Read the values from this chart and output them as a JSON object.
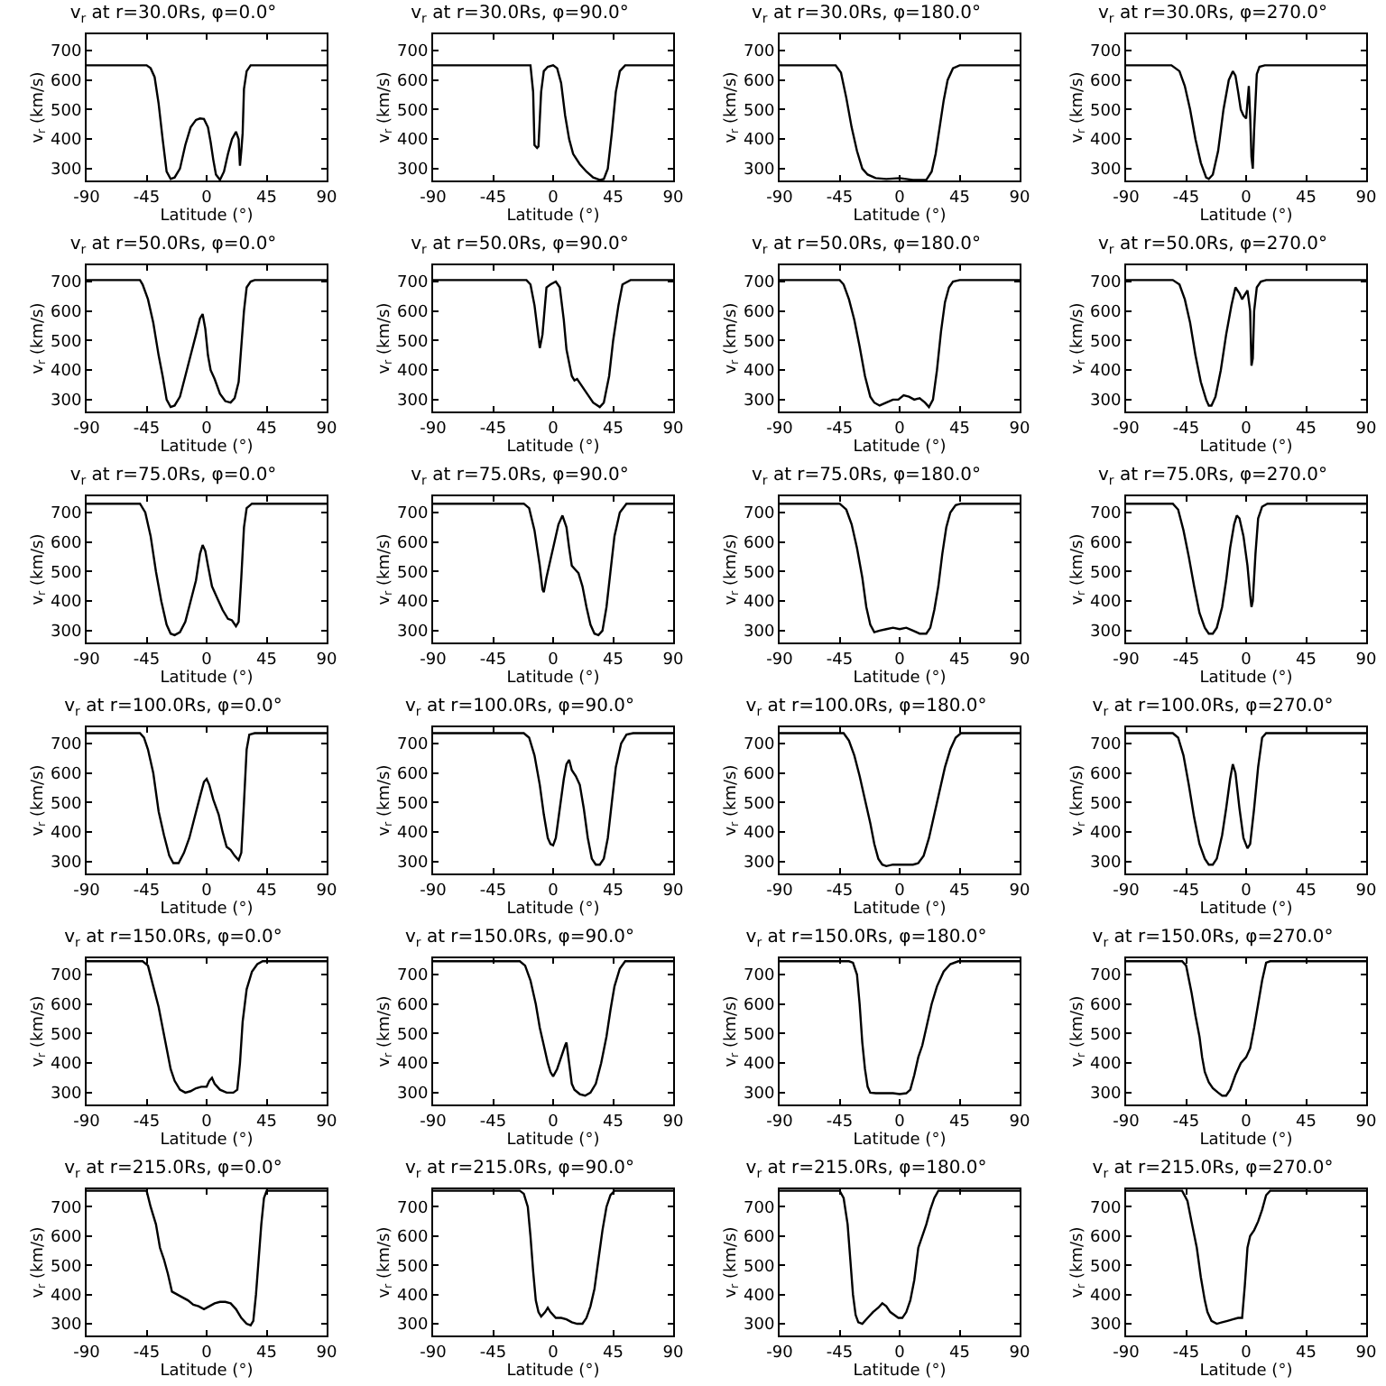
{
  "chart_data": [
    {
      "type": "line",
      "title": "v$_{r}$ at r=30.0Rs, φ=0.0°",
      "xlabel": "Latitude (°)",
      "ylabel": "v$_{r}$ (km/s)",
      "xlim": [
        -90,
        90
      ],
      "xticks": [
        -90,
        -45,
        0,
        45,
        90
      ],
      "ylim": [
        260,
        755
      ],
      "yticks": [
        300,
        400,
        500,
        600,
        700
      ],
      "color": "#000000",
      "x": [
        -90,
        -45,
        -42,
        -39,
        -36,
        -33,
        -30,
        -27,
        -24,
        -20,
        -16,
        -12,
        -8,
        -5,
        -2,
        1,
        3,
        5,
        7,
        10,
        13,
        16,
        19,
        22,
        24,
        25,
        26,
        27,
        28,
        30,
        33,
        36,
        90
      ],
      "values": [
        650,
        650,
        640,
        610,
        520,
        400,
        290,
        265,
        270,
        300,
        380,
        440,
        465,
        470,
        468,
        440,
        390,
        330,
        280,
        262,
        290,
        350,
        400,
        425,
        400,
        310,
        360,
        420,
        570,
        630,
        650,
        650,
        650
      ]
    },
    {
      "type": "line",
      "title": "v$_{r}$ at r=30.0Rs, φ=90.0°",
      "xlabel": "Latitude (°)",
      "ylabel": "v$_{r}$ (km/s)",
      "xlim": [
        -90,
        90
      ],
      "xticks": [
        -90,
        -45,
        0,
        45,
        90
      ],
      "ylim": [
        260,
        755
      ],
      "yticks": [
        300,
        400,
        500,
        600,
        700
      ],
      "color": "#000000",
      "x": [
        -90,
        -17,
        -15,
        -14,
        -12,
        -11,
        -9,
        -7,
        -4,
        0,
        3,
        6,
        9,
        12,
        15,
        20,
        25,
        30,
        35,
        38,
        41,
        44,
        47,
        50,
        54,
        90
      ],
      "values": [
        650,
        650,
        560,
        380,
        370,
        375,
        560,
        630,
        645,
        650,
        640,
        590,
        480,
        400,
        350,
        315,
        290,
        270,
        262,
        265,
        300,
        420,
        560,
        630,
        650,
        650
      ]
    },
    {
      "type": "line",
      "title": "v$_{r}$ at r=30.0Rs, φ=180.0°",
      "xlabel": "Latitude (°)",
      "ylabel": "v$_{r}$ (km/s)",
      "xlim": [
        -90,
        90
      ],
      "xticks": [
        -90,
        -45,
        0,
        45,
        90
      ],
      "ylim": [
        260,
        755
      ],
      "yticks": [
        300,
        400,
        500,
        600,
        700
      ],
      "color": "#000000",
      "x": [
        -90,
        -48,
        -44,
        -40,
        -36,
        -32,
        -28,
        -24,
        -18,
        -10,
        0,
        10,
        20,
        24,
        27,
        30,
        33,
        36,
        40,
        45,
        90
      ],
      "values": [
        650,
        650,
        625,
        540,
        440,
        360,
        300,
        280,
        268,
        265,
        268,
        262,
        262,
        290,
        350,
        440,
        530,
        600,
        640,
        650,
        650
      ]
    },
    {
      "type": "line",
      "title": "v$_{r}$ at r=30.0Rs, φ=270.0°",
      "xlabel": "Latitude (°)",
      "ylabel": "v$_{r}$ (km/s)",
      "xlim": [
        -90,
        90
      ],
      "xticks": [
        -90,
        -45,
        0,
        45,
        90
      ],
      "ylim": [
        260,
        755
      ],
      "yticks": [
        300,
        400,
        500,
        600,
        700
      ],
      "color": "#000000",
      "x": [
        -90,
        -56,
        -50,
        -46,
        -42,
        -38,
        -34,
        -30,
        -28,
        -25,
        -21,
        -17,
        -13,
        -10,
        -8,
        -6,
        -4,
        -2,
        0,
        2,
        3,
        4,
        5,
        6,
        8,
        10,
        14,
        90
      ],
      "values": [
        650,
        650,
        630,
        580,
        500,
        400,
        320,
        270,
        265,
        280,
        360,
        500,
        600,
        630,
        615,
        560,
        500,
        480,
        470,
        580,
        480,
        340,
        300,
        430,
        620,
        645,
        650,
        650
      ]
    },
    {
      "type": "line",
      "title": "v$_{r}$ at r=50.0Rs, φ=0.0°",
      "xlabel": "Latitude (°)",
      "ylabel": "v$_{r}$ (km/s)",
      "xlim": [
        -90,
        90
      ],
      "xticks": [
        -90,
        -45,
        0,
        45,
        90
      ],
      "ylim": [
        260,
        755
      ],
      "yticks": [
        300,
        400,
        500,
        600,
        700
      ],
      "color": "#000000",
      "x": [
        -90,
        -50,
        -48,
        -44,
        -40,
        -36,
        -33,
        -30,
        -27,
        -24,
        -20,
        -16,
        -12,
        -8,
        -5,
        -3,
        -1,
        1,
        3,
        6,
        10,
        14,
        18,
        21,
        24,
        26,
        28,
        30,
        33,
        36,
        90
      ],
      "values": [
        705,
        705,
        690,
        640,
        560,
        450,
        380,
        300,
        275,
        280,
        310,
        380,
        450,
        520,
        575,
        590,
        540,
        450,
        400,
        370,
        320,
        295,
        290,
        305,
        360,
        480,
        600,
        680,
        700,
        705,
        705
      ]
    },
    {
      "type": "line",
      "title": "v$_{r}$ at r=50.0Rs, φ=90.0°",
      "xlabel": "Latitude (°)",
      "ylabel": "v$_{r}$ (km/s)",
      "xlim": [
        -90,
        90
      ],
      "xticks": [
        -90,
        -45,
        0,
        45,
        90
      ],
      "ylim": [
        260,
        755
      ],
      "yticks": [
        300,
        400,
        500,
        600,
        700
      ],
      "color": "#000000",
      "x": [
        -90,
        -20,
        -17,
        -14,
        -10,
        -8,
        -5,
        -2,
        2,
        5,
        8,
        10,
        14,
        16,
        18,
        24,
        30,
        35,
        38,
        42,
        45,
        49,
        52,
        58,
        90
      ],
      "values": [
        705,
        705,
        690,
        620,
        475,
        520,
        680,
        690,
        700,
        680,
        570,
        470,
        380,
        365,
        370,
        330,
        290,
        275,
        290,
        380,
        500,
        620,
        690,
        705,
        705
      ]
    },
    {
      "type": "line",
      "title": "v$_{r}$ at r=50.0Rs, φ=180.0°",
      "xlabel": "Latitude (°)",
      "ylabel": "v$_{r}$ (km/s)",
      "xlim": [
        -90,
        90
      ],
      "xticks": [
        -90,
        -45,
        0,
        45,
        90
      ],
      "ylim": [
        260,
        755
      ],
      "yticks": [
        300,
        400,
        500,
        600,
        700
      ],
      "color": "#000000",
      "x": [
        -90,
        -45,
        -42,
        -38,
        -34,
        -30,
        -26,
        -22,
        -19,
        -15,
        -10,
        -5,
        -1,
        3,
        7,
        11,
        15,
        19,
        22,
        25,
        28,
        31,
        34,
        37,
        40,
        45,
        90
      ],
      "values": [
        705,
        705,
        690,
        640,
        570,
        480,
        380,
        310,
        290,
        280,
        290,
        300,
        300,
        315,
        310,
        300,
        305,
        290,
        275,
        300,
        400,
        530,
        630,
        680,
        700,
        705,
        705
      ]
    },
    {
      "type": "line",
      "title": "v$_{r}$ at r=50.0Rs, φ=270.0°",
      "xlabel": "Latitude (°)",
      "ylabel": "v$_{r}$ (km/s)",
      "xlim": [
        -90,
        90
      ],
      "xticks": [
        -90,
        -45,
        0,
        45,
        90
      ],
      "ylim": [
        260,
        755
      ],
      "yticks": [
        300,
        400,
        500,
        600,
        700
      ],
      "color": "#000000",
      "x": [
        -90,
        -55,
        -50,
        -46,
        -42,
        -38,
        -34,
        -30,
        -28,
        -26,
        -23,
        -19,
        -15,
        -11,
        -8,
        -5,
        -3,
        -1,
        1,
        3,
        4,
        5,
        6,
        8,
        11,
        15,
        90
      ],
      "values": [
        705,
        705,
        690,
        640,
        560,
        450,
        360,
        300,
        280,
        280,
        310,
        400,
        520,
        620,
        680,
        660,
        640,
        655,
        670,
        600,
        415,
        440,
        600,
        680,
        700,
        705,
        705
      ]
    },
    {
      "type": "line",
      "title": "v$_{r}$ at r=75.0Rs, φ=0.0°",
      "xlabel": "Latitude (°)",
      "ylabel": "v$_{r}$ (km/s)",
      "xlim": [
        -90,
        90
      ],
      "xticks": [
        -90,
        -45,
        0,
        45,
        90
      ],
      "ylim": [
        260,
        755
      ],
      "yticks": [
        300,
        400,
        500,
        600,
        700
      ],
      "color": "#000000",
      "x": [
        -90,
        -50,
        -46,
        -42,
        -38,
        -34,
        -30,
        -27,
        -24,
        -20,
        -16,
        -12,
        -8,
        -5,
        -3,
        -1,
        1,
        4,
        8,
        12,
        16,
        19,
        22,
        24,
        26,
        28,
        30,
        34,
        90
      ],
      "values": [
        730,
        730,
        700,
        620,
        500,
        400,
        320,
        290,
        285,
        295,
        330,
        400,
        470,
        560,
        590,
        570,
        520,
        450,
        410,
        370,
        340,
        335,
        315,
        330,
        480,
        650,
        715,
        730,
        730
      ]
    },
    {
      "type": "line",
      "title": "v$_{r}$ at r=75.0Rs, φ=90.0°",
      "xlabel": "Latitude (°)",
      "ylabel": "v$_{r}$ (km/s)",
      "xlim": [
        -90,
        90
      ],
      "xticks": [
        -90,
        -45,
        0,
        45,
        90
      ],
      "ylim": [
        260,
        755
      ],
      "yticks": [
        300,
        400,
        500,
        600,
        700
      ],
      "color": "#000000",
      "x": [
        -90,
        -22,
        -18,
        -14,
        -10,
        -8,
        -7,
        -5,
        -2,
        1,
        4,
        7,
        10,
        12,
        14,
        16,
        19,
        22,
        25,
        28,
        31,
        34,
        37,
        40,
        43,
        46,
        50,
        55,
        90
      ],
      "values": [
        730,
        730,
        715,
        640,
        520,
        440,
        430,
        480,
        540,
        600,
        660,
        690,
        650,
        580,
        520,
        510,
        495,
        450,
        380,
        320,
        290,
        285,
        300,
        380,
        500,
        620,
        700,
        730,
        730
      ]
    },
    {
      "type": "line",
      "title": "v$_{r}$ at r=75.0Rs, φ=180.0°",
      "xlabel": "Latitude (°)",
      "ylabel": "v$_{r}$ (km/s)",
      "xlim": [
        -90,
        90
      ],
      "xticks": [
        -90,
        -45,
        0,
        45,
        90
      ],
      "ylim": [
        260,
        755
      ],
      "yticks": [
        300,
        400,
        500,
        600,
        700
      ],
      "color": "#000000",
      "x": [
        -90,
        -45,
        -40,
        -36,
        -32,
        -28,
        -25,
        -22,
        -19,
        -15,
        -10,
        -5,
        0,
        5,
        10,
        15,
        20,
        23,
        26,
        29,
        32,
        35,
        38,
        42,
        46,
        90
      ],
      "values": [
        730,
        730,
        710,
        660,
        580,
        480,
        380,
        320,
        295,
        300,
        305,
        310,
        305,
        310,
        300,
        290,
        290,
        310,
        370,
        450,
        560,
        650,
        700,
        725,
        730,
        730
      ]
    },
    {
      "type": "line",
      "title": "v$_{r}$ at r=75.0Rs, φ=270.0°",
      "xlabel": "Latitude (°)",
      "ylabel": "v$_{r}$ (km/s)",
      "xlim": [
        -90,
        90
      ],
      "xticks": [
        -90,
        -45,
        0,
        45,
        90
      ],
      "ylim": [
        260,
        755
      ],
      "yticks": [
        300,
        400,
        500,
        600,
        700
      ],
      "color": "#000000",
      "x": [
        -90,
        -55,
        -51,
        -47,
        -43,
        -39,
        -35,
        -31,
        -28,
        -25,
        -22,
        -18,
        -15,
        -12,
        -9,
        -7,
        -5,
        -2,
        1,
        3,
        4,
        5,
        7,
        9,
        12,
        16,
        90
      ],
      "values": [
        730,
        730,
        710,
        640,
        550,
        450,
        360,
        310,
        290,
        290,
        310,
        380,
        470,
        580,
        660,
        690,
        680,
        620,
        520,
        420,
        380,
        400,
        560,
        680,
        720,
        730,
        730
      ]
    },
    {
      "type": "line",
      "title": "v$_{r}$ at r=100.0Rs, φ=0.0°",
      "xlabel": "Latitude (°)",
      "ylabel": "v$_{r}$ (km/s)",
      "xlim": [
        -90,
        90
      ],
      "xticks": [
        -90,
        -45,
        0,
        45,
        90
      ],
      "ylim": [
        260,
        755
      ],
      "yticks": [
        300,
        400,
        500,
        600,
        700
      ],
      "color": "#000000",
      "x": [
        -90,
        -50,
        -47,
        -44,
        -40,
        -36,
        -32,
        -28,
        -25,
        -21,
        -17,
        -13,
        -9,
        -5,
        -2,
        0,
        2,
        5,
        9,
        12,
        15,
        18,
        21,
        24,
        26,
        28,
        30,
        32,
        36,
        90
      ],
      "values": [
        735,
        735,
        720,
        680,
        600,
        470,
        390,
        320,
        295,
        295,
        330,
        380,
        450,
        520,
        570,
        580,
        560,
        510,
        460,
        400,
        350,
        340,
        320,
        305,
        330,
        500,
        680,
        730,
        735,
        735
      ]
    },
    {
      "type": "line",
      "title": "v$_{r}$ at r=100.0Rs, φ=90.0°",
      "xlabel": "Latitude (°)",
      "ylabel": "v$_{r}$ (km/s)",
      "xlim": [
        -90,
        90
      ],
      "xticks": [
        -90,
        -45,
        0,
        45,
        90
      ],
      "ylim": [
        260,
        755
      ],
      "yticks": [
        300,
        400,
        500,
        600,
        700
      ],
      "color": "#000000",
      "x": [
        -90,
        -22,
        -18,
        -14,
        -10,
        -7,
        -4,
        -2,
        0,
        2,
        5,
        8,
        10,
        12,
        14,
        17,
        20,
        23,
        26,
        29,
        32,
        35,
        38,
        41,
        44,
        47,
        51,
        55,
        60,
        90
      ],
      "values": [
        735,
        735,
        720,
        660,
        560,
        460,
        380,
        360,
        355,
        380,
        480,
        580,
        630,
        645,
        610,
        590,
        560,
        480,
        380,
        310,
        290,
        290,
        310,
        380,
        500,
        620,
        700,
        730,
        735,
        735
      ]
    },
    {
      "type": "line",
      "title": "v$_{r}$ at r=100.0Rs, φ=180.0°",
      "xlabel": "Latitude (°)",
      "ylabel": "v$_{r}$ (km/s)",
      "xlim": [
        -90,
        90
      ],
      "xticks": [
        -90,
        -45,
        0,
        45,
        90
      ],
      "ylim": [
        260,
        755
      ],
      "yticks": [
        300,
        400,
        500,
        600,
        700
      ],
      "color": "#000000",
      "x": [
        -90,
        -42,
        -38,
        -34,
        -30,
        -26,
        -22,
        -19,
        -16,
        -13,
        -10,
        -5,
        0,
        5,
        10,
        14,
        18,
        22,
        26,
        30,
        34,
        38,
        42,
        46,
        90
      ],
      "values": [
        735,
        735,
        710,
        660,
        590,
        510,
        430,
        360,
        310,
        290,
        285,
        290,
        290,
        290,
        290,
        295,
        320,
        380,
        460,
        540,
        620,
        680,
        720,
        735,
        735
      ]
    },
    {
      "type": "line",
      "title": "v$_{r}$ at r=100.0Rs, φ=270.0°",
      "xlabel": "Latitude (°)",
      "ylabel": "v$_{r}$ (km/s)",
      "xlim": [
        -90,
        90
      ],
      "xticks": [
        -90,
        -45,
        0,
        45,
        90
      ],
      "ylim": [
        260,
        755
      ],
      "yticks": [
        300,
        400,
        500,
        600,
        700
      ],
      "color": "#000000",
      "x": [
        -90,
        -55,
        -51,
        -47,
        -43,
        -39,
        -35,
        -31,
        -28,
        -25,
        -22,
        -18,
        -15,
        -12,
        -10,
        -8,
        -5,
        -2,
        1,
        3,
        6,
        9,
        12,
        15,
        90
      ],
      "values": [
        735,
        735,
        720,
        660,
        560,
        450,
        360,
        310,
        290,
        290,
        310,
        390,
        480,
        580,
        630,
        600,
        480,
        380,
        345,
        360,
        480,
        620,
        720,
        735,
        735
      ]
    },
    {
      "type": "line",
      "title": "v$_{r}$ at r=150.0Rs, φ=0.0°",
      "xlabel": "Latitude (°)",
      "ylabel": "v$_{r}$ (km/s)",
      "xlim": [
        -90,
        90
      ],
      "xticks": [
        -90,
        -45,
        0,
        45,
        90
      ],
      "ylim": [
        260,
        755
      ],
      "yticks": [
        300,
        400,
        500,
        600,
        700
      ],
      "color": "#000000",
      "x": [
        -90,
        -48,
        -44,
        -40,
        -36,
        -33,
        -30,
        -27,
        -24,
        -20,
        -16,
        -12,
        -8,
        -4,
        0,
        2,
        4,
        6,
        10,
        15,
        20,
        23,
        25,
        27,
        30,
        34,
        38,
        42,
        90
      ],
      "values": [
        745,
        745,
        730,
        660,
        590,
        520,
        450,
        380,
        340,
        310,
        300,
        305,
        315,
        320,
        320,
        340,
        350,
        330,
        310,
        300,
        300,
        310,
        400,
        540,
        650,
        710,
        735,
        745,
        745
      ]
    },
    {
      "type": "line",
      "title": "v$_{r}$ at r=150.0Rs, φ=90.0°",
      "xlabel": "Latitude (°)",
      "ylabel": "v$_{r}$ (km/s)",
      "xlim": [
        -90,
        90
      ],
      "xticks": [
        -90,
        -45,
        0,
        45,
        90
      ],
      "ylim": [
        260,
        755
      ],
      "yticks": [
        300,
        400,
        500,
        600,
        700
      ],
      "color": "#000000",
      "x": [
        -90,
        -25,
        -21,
        -17,
        -13,
        -10,
        -7,
        -4,
        -2,
        0,
        3,
        6,
        9,
        10,
        12,
        14,
        16,
        20,
        24,
        28,
        32,
        36,
        40,
        43,
        46,
        50,
        54,
        90
      ],
      "values": [
        745,
        745,
        730,
        680,
        600,
        520,
        460,
        400,
        370,
        355,
        380,
        420,
        460,
        470,
        400,
        330,
        310,
        295,
        290,
        300,
        330,
        400,
        490,
        580,
        660,
        720,
        745,
        745
      ]
    },
    {
      "type": "line",
      "title": "v$_{r}$ at r=150.0Rs, φ=180.0°",
      "xlabel": "Latitude (°)",
      "ylabel": "v$_{r}$ (km/s)",
      "xlim": [
        -90,
        90
      ],
      "xticks": [
        -90,
        -45,
        0,
        45,
        90
      ],
      "ylim": [
        260,
        755
      ],
      "yticks": [
        300,
        400,
        500,
        600,
        700
      ],
      "color": "#000000",
      "x": [
        -90,
        -38,
        -35,
        -32,
        -30,
        -28,
        -26,
        -24,
        -22,
        -18,
        -10,
        -5,
        0,
        5,
        8,
        11,
        14,
        17,
        20,
        24,
        28,
        33,
        38,
        44,
        90
      ],
      "values": [
        745,
        745,
        740,
        700,
        600,
        470,
        380,
        320,
        300,
        298,
        298,
        298,
        295,
        298,
        310,
        360,
        420,
        460,
        520,
        600,
        660,
        710,
        735,
        745,
        745
      ]
    },
    {
      "type": "line",
      "title": "v$_{r}$ at r=150.0Rs, φ=270.0°",
      "xlabel": "Latitude (°)",
      "ylabel": "v$_{r}$ (km/s)",
      "xlim": [
        -90,
        90
      ],
      "xticks": [
        -90,
        -45,
        0,
        45,
        90
      ],
      "ylim": [
        260,
        755
      ],
      "yticks": [
        300,
        400,
        500,
        600,
        700
      ],
      "color": "#000000",
      "x": [
        -90,
        -48,
        -45,
        -41,
        -38,
        -35,
        -33,
        -31,
        -28,
        -25,
        -21,
        -18,
        -15,
        -12,
        -8,
        -4,
        0,
        3,
        6,
        9,
        12,
        15,
        18,
        90
      ],
      "values": [
        745,
        745,
        730,
        640,
        560,
        490,
        420,
        370,
        335,
        315,
        300,
        290,
        290,
        310,
        360,
        400,
        420,
        450,
        520,
        600,
        680,
        740,
        745,
        745
      ]
    },
    {
      "type": "line",
      "title": "v$_{r}$ at r=215.0Rs, φ=0.0°",
      "xlabel": "Latitude (°)",
      "ylabel": "v$_{r}$ (km/s)",
      "xlim": [
        -90,
        90
      ],
      "xticks": [
        -90,
        -45,
        0,
        45,
        90
      ],
      "ylim": [
        260,
        760
      ],
      "yticks": [
        300,
        400,
        500,
        600,
        700
      ],
      "color": "#000000",
      "x": [
        -90,
        -45,
        -42,
        -38,
        -35,
        -32,
        -29,
        -26,
        -22,
        -18,
        -14,
        -10,
        -6,
        -2,
        2,
        6,
        10,
        14,
        18,
        22,
        26,
        30,
        33,
        35,
        37,
        39,
        41,
        43,
        45,
        90
      ],
      "values": [
        755,
        755,
        700,
        640,
        560,
        520,
        470,
        410,
        400,
        390,
        380,
        365,
        360,
        350,
        360,
        370,
        375,
        375,
        370,
        350,
        320,
        300,
        295,
        310,
        400,
        520,
        640,
        730,
        755,
        755
      ]
    },
    {
      "type": "line",
      "title": "v$_{r}$ at r=215.0Rs, φ=90.0°",
      "xlabel": "Latitude (°)",
      "ylabel": "v$_{r}$ (km/s)",
      "xlim": [
        -90,
        90
      ],
      "xticks": [
        -90,
        -45,
        0,
        45,
        90
      ],
      "ylim": [
        260,
        760
      ],
      "yticks": [
        300,
        400,
        500,
        600,
        700
      ],
      "color": "#000000",
      "x": [
        -90,
        -25,
        -22,
        -19,
        -17,
        -15,
        -13,
        -11,
        -9,
        -6,
        -4,
        -2,
        2,
        6,
        10,
        14,
        18,
        22,
        25,
        28,
        31,
        34,
        37,
        40,
        43,
        46,
        90
      ],
      "values": [
        755,
        755,
        745,
        700,
        600,
        480,
        380,
        340,
        325,
        340,
        355,
        340,
        320,
        320,
        315,
        305,
        300,
        300,
        320,
        360,
        420,
        520,
        620,
        700,
        740,
        755,
        755
      ]
    },
    {
      "type": "line",
      "title": "v$_{r}$ at r=215.0Rs, φ=180.0°",
      "xlabel": "Latitude (°)",
      "ylabel": "v$_{r}$ (km/s)",
      "xlim": [
        -90,
        90
      ],
      "xticks": [
        -90,
        -45,
        0,
        45,
        90
      ],
      "ylim": [
        260,
        760
      ],
      "yticks": [
        300,
        400,
        500,
        600,
        700
      ],
      "color": "#000000",
      "x": [
        -90,
        -45,
        -42,
        -39,
        -37,
        -35,
        -33,
        -31,
        -28,
        -24,
        -20,
        -16,
        -13,
        -10,
        -7,
        -4,
        -1,
        2,
        5,
        8,
        11,
        14,
        17,
        20,
        23,
        26,
        29,
        90
      ],
      "values": [
        755,
        755,
        730,
        640,
        520,
        400,
        330,
        305,
        300,
        320,
        340,
        355,
        370,
        360,
        340,
        330,
        320,
        320,
        340,
        380,
        450,
        560,
        600,
        640,
        690,
        730,
        755,
        755
      ]
    },
    {
      "type": "line",
      "title": "v$_{r}$ at r=215.0Rs, φ=270.0°",
      "xlabel": "Latitude (°)",
      "ylabel": "v$_{r}$ (km/s)",
      "xlim": [
        -90,
        90
      ],
      "xticks": [
        -90,
        -45,
        0,
        45,
        90
      ],
      "ylim": [
        260,
        760
      ],
      "yticks": [
        300,
        400,
        500,
        600,
        700
      ],
      "color": "#000000",
      "x": [
        -90,
        -48,
        -44,
        -41,
        -37,
        -34,
        -31,
        -29,
        -26,
        -22,
        -18,
        -14,
        -10,
        -6,
        -3,
        -1,
        1,
        3,
        6,
        9,
        12,
        15,
        18,
        90
      ],
      "values": [
        755,
        755,
        720,
        650,
        560,
        460,
        380,
        340,
        310,
        300,
        305,
        310,
        315,
        320,
        320,
        430,
        560,
        600,
        620,
        650,
        690,
        740,
        755,
        755
      ]
    }
  ]
}
